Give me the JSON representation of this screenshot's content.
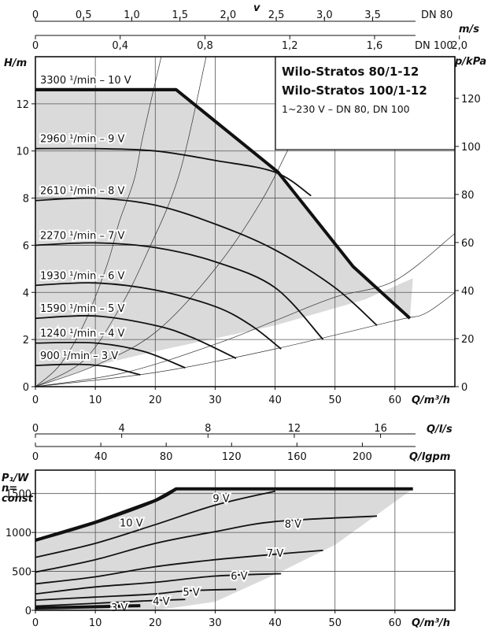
{
  "chart_data": [
    {
      "type": "line",
      "name": "head-curves",
      "title_lines": [
        "Wilo-Stratos 80/1-12",
        "Wilo-Stratos 100/1-12"
      ],
      "subtitle": "1~230 V – DN 80, DN 100",
      "ylabel_left": "H/m",
      "ylabel_right": "p/kPa",
      "xlabel": "Q/m³/h",
      "xlim": [
        0,
        70
      ],
      "ylim": [
        0,
        14
      ],
      "xticks": [
        0,
        10,
        20,
        30,
        40,
        50,
        60
      ],
      "yticks": [
        0,
        2,
        4,
        6,
        8,
        10,
        12
      ],
      "kpa_ticks": [
        0,
        20,
        40,
        60,
        80,
        100,
        120
      ],
      "top_axis_dn80": {
        "unit": "DN 80",
        "axis_label": "v",
        "ticks": [
          "0",
          "0,5",
          "1,0",
          "1,5",
          "2,0",
          "2,5",
          "3,0",
          "3,5"
        ],
        "ticks_per_unit_q": 8.04
      },
      "top_axis_dn100": {
        "unit": "DN 100",
        "axis_label": "m/s",
        "ticks": [
          "0",
          "0,4",
          "0,8",
          "1,2",
          "1,6",
          "2,0"
        ],
        "ticks_per_unit_q": 28.3
      },
      "max_curve": [
        [
          0,
          12.6
        ],
        [
          23.5,
          12.6
        ],
        [
          40.5,
          9.1
        ],
        [
          53,
          5.1
        ],
        [
          62.5,
          2.9
        ]
      ],
      "series": [
        {
          "label": "3300 ¹/min – 10 V",
          "values": [
            [
              0,
              12.6
            ],
            [
              23.5,
              12.6
            ]
          ]
        },
        {
          "label": "2960 ¹/min – 9 V",
          "values": [
            [
              0,
              10.1
            ],
            [
              10,
              10.1
            ],
            [
              20,
              10.0
            ],
            [
              30,
              9.6
            ],
            [
              40,
              9.1
            ],
            [
              46,
              8.1
            ]
          ]
        },
        {
          "label": "2610 ¹/min – 8 V",
          "values": [
            [
              0,
              7.9
            ],
            [
              10,
              8.0
            ],
            [
              20,
              7.7
            ],
            [
              30,
              6.9
            ],
            [
              40,
              5.8
            ],
            [
              50,
              4.2
            ],
            [
              57,
              2.6
            ]
          ]
        },
        {
          "label": "2270 ¹/min – 7 V",
          "values": [
            [
              0,
              6.0
            ],
            [
              10,
              6.1
            ],
            [
              20,
              5.9
            ],
            [
              30,
              5.3
            ],
            [
              40,
              4.2
            ],
            [
              48,
              2.0
            ]
          ]
        },
        {
          "label": "1930 ¹/min – 6 V",
          "values": [
            [
              0,
              4.3
            ],
            [
              10,
              4.4
            ],
            [
              20,
              4.1
            ],
            [
              30,
              3.4
            ],
            [
              36,
              2.6
            ],
            [
              41,
              1.6
            ]
          ]
        },
        {
          "label": "1590 ¹/min – 5 V",
          "values": [
            [
              0,
              2.9
            ],
            [
              10,
              3.0
            ],
            [
              20,
              2.6
            ],
            [
              26,
              2.1
            ],
            [
              33.5,
              1.2
            ]
          ]
        },
        {
          "label": "1240 ¹/min – 4 V",
          "values": [
            [
              0,
              1.85
            ],
            [
              10,
              1.85
            ],
            [
              18,
              1.5
            ],
            [
              25,
              0.8
            ]
          ]
        },
        {
          "label": "900 ¹/min – 3 V",
          "values": [
            [
              0,
              0.9
            ],
            [
              7,
              0.95
            ],
            [
              12,
              0.85
            ],
            [
              17.5,
              0.5
            ]
          ]
        }
      ],
      "min_curve": [
        [
          0,
          0
        ],
        [
          10,
          0.9
        ],
        [
          20,
          1.5
        ],
        [
          40,
          2.6
        ],
        [
          55,
          3.7
        ],
        [
          63,
          4.6
        ]
      ],
      "system_curves": [
        {
          "values": [
            [
              0,
              0
            ],
            [
              4,
              0.9
            ],
            [
              8,
              2.6
            ],
            [
              12,
              5.2
            ],
            [
              14,
              7.0
            ],
            [
              16.5,
              8.8
            ],
            [
              18,
              10.7
            ],
            [
              21,
              14.0
            ]
          ]
        },
        {
          "values": [
            [
              0,
              0
            ],
            [
              8,
              1.1
            ],
            [
              14,
              3.3
            ],
            [
              18.5,
              5.6
            ],
            [
              24,
              9.0
            ],
            [
              28.5,
              14.0
            ]
          ]
        },
        {
          "values": [
            [
              0,
              0
            ],
            [
              10,
              0.9
            ],
            [
              20,
              2.3
            ],
            [
              30,
              5.0
            ],
            [
              38,
              8.0
            ],
            [
              45,
              11.5
            ],
            [
              51,
              14.0
            ]
          ]
        },
        {
          "values": [
            [
              0,
              0
            ],
            [
              15,
              0.6
            ],
            [
              30,
              1.8
            ],
            [
              40,
              2.8
            ],
            [
              50,
              3.8
            ],
            [
              60,
              4.5
            ],
            [
              70,
              6.5
            ]
          ]
        },
        {
          "values": [
            [
              0,
              0
            ],
            [
              20,
              0.6
            ],
            [
              40,
              1.6
            ],
            [
              60,
              2.8
            ],
            [
              65,
              3.1
            ],
            [
              70,
              4.0
            ]
          ]
        }
      ]
    },
    {
      "type": "line",
      "name": "power-curves",
      "ylabel": "P₁/W",
      "ylabel_lines": [
        "n=",
        "const"
      ],
      "xlabel": "Q/m³/h",
      "xlim": [
        0,
        70
      ],
      "ylim": [
        0,
        1800
      ],
      "xticks": [
        0,
        10,
        20,
        30,
        40,
        50,
        60
      ],
      "yticks": [
        0,
        500,
        1000,
        1500
      ],
      "ls_axis": {
        "label": "Q/l/s",
        "ticks": [
          0,
          4,
          8,
          12,
          16
        ]
      },
      "lgpm_axis": {
        "label": "Q/lgpm",
        "ticks": [
          0,
          40,
          80,
          120,
          160,
          200
        ]
      },
      "max_curve": [
        [
          0,
          900
        ],
        [
          10,
          1130
        ],
        [
          20,
          1410
        ],
        [
          23.5,
          1560
        ],
        [
          63,
          1560
        ]
      ],
      "series": [
        {
          "label": "10 V",
          "values": [
            [
              0,
              900
            ],
            [
              10,
              1130
            ],
            [
              20,
              1410
            ],
            [
              23.5,
              1560
            ]
          ]
        },
        {
          "label": "9 V",
          "values": [
            [
              0,
              680
            ],
            [
              10,
              860
            ],
            [
              20,
              1100
            ],
            [
              30,
              1350
            ],
            [
              40,
              1530
            ]
          ]
        },
        {
          "label": "8 V",
          "values": [
            [
              0,
              490
            ],
            [
              10,
              650
            ],
            [
              20,
              860
            ],
            [
              30,
              1010
            ],
            [
              40,
              1140
            ],
            [
              57,
              1210
            ]
          ]
        },
        {
          "label": "7 V",
          "values": [
            [
              0,
              340
            ],
            [
              10,
              430
            ],
            [
              20,
              560
            ],
            [
              30,
              650
            ],
            [
              40,
              720
            ],
            [
              48,
              770
            ]
          ]
        },
        {
          "label": "6 V",
          "values": [
            [
              0,
              210
            ],
            [
              10,
              300
            ],
            [
              20,
              360
            ],
            [
              30,
              440
            ],
            [
              41,
              470
            ]
          ]
        },
        {
          "label": "5 V",
          "values": [
            [
              0,
              130
            ],
            [
              10,
              170
            ],
            [
              20,
              210
            ],
            [
              25,
              250
            ],
            [
              33.5,
              270
            ]
          ]
        },
        {
          "label": "4 V",
          "values": [
            [
              0,
              55
            ],
            [
              10,
              90
            ],
            [
              18,
              120
            ],
            [
              25,
              140
            ]
          ]
        },
        {
          "label": "3 V",
          "values": [
            [
              0,
              30
            ],
            [
              7,
              40
            ],
            [
              12,
              50
            ],
            [
              17.5,
              60
            ]
          ]
        }
      ],
      "min_curve": [
        [
          0,
          0
        ],
        [
          20,
          0
        ],
        [
          30,
          110
        ],
        [
          40,
          460
        ],
        [
          50,
          840
        ],
        [
          63,
          1560
        ]
      ]
    }
  ]
}
